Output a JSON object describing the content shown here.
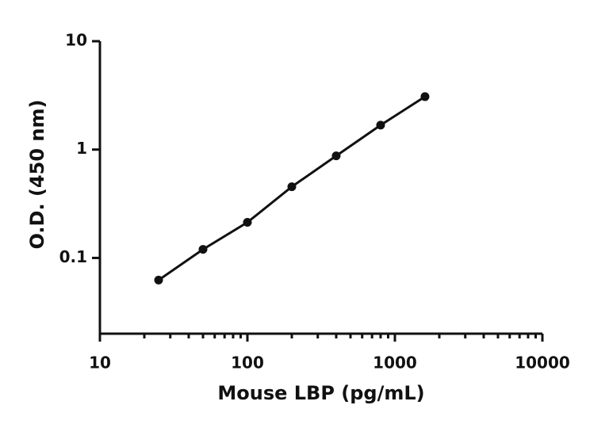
{
  "chart_data": {
    "type": "scatter",
    "log_x": true,
    "log_y": true,
    "x_label": "Mouse LBP (pg/mL)",
    "y_label": "O.D. (450 nm)",
    "xlim": [
      10,
      10000
    ],
    "ylim": [
      0.02,
      10
    ],
    "xticks": [
      10,
      100,
      1000,
      10000
    ],
    "xminorticks": [
      20,
      30,
      40,
      50,
      60,
      70,
      80,
      90,
      200,
      300,
      400,
      500,
      600,
      700,
      800,
      900,
      2000,
      3000,
      4000,
      5000,
      6000,
      7000,
      8000,
      9000
    ],
    "yticks": [
      0.1,
      1,
      10
    ],
    "series": [
      {
        "color": "#111111",
        "line": true,
        "x": [
          25,
          50,
          100,
          200,
          400,
          800,
          1600
        ],
        "values": [
          0.0625,
          0.12,
          0.213,
          0.454,
          0.875,
          1.68,
          3.08
        ]
      }
    ]
  }
}
